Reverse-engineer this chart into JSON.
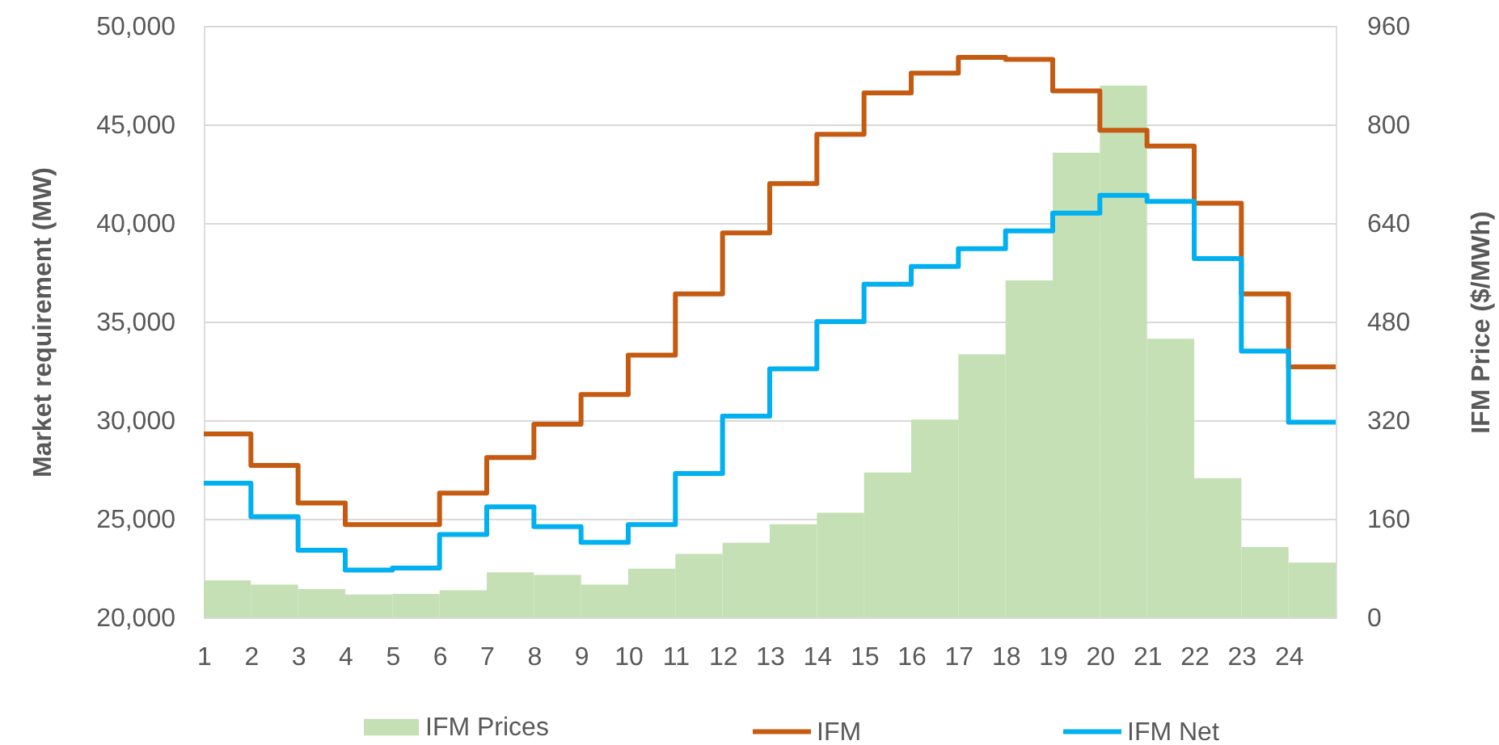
{
  "chart_data": {
    "type": "line",
    "x": [
      1,
      2,
      2,
      3,
      3,
      4,
      4,
      5,
      5,
      6,
      6,
      7,
      7,
      8,
      8,
      9,
      9,
      10,
      10,
      11,
      11,
      12,
      12,
      13,
      13,
      14,
      14,
      15,
      15,
      16,
      16,
      17,
      17,
      18,
      18,
      19,
      19,
      20,
      20,
      21,
      21,
      22,
      22,
      23,
      23,
      24,
      24,
      25
    ],
    "xlim": [
      1,
      25
    ],
    "xticks": [
      1,
      2,
      3,
      4,
      5,
      6,
      7,
      8,
      9,
      10,
      11,
      12,
      13,
      14,
      15,
      16,
      17,
      18,
      19,
      20,
      21,
      22,
      23,
      24
    ],
    "ylim": [
      20000,
      50000
    ],
    "yticks": [
      {
        "value": 20000,
        "label": "20,000"
      },
      {
        "value": 25000,
        "label": "25,000"
      },
      {
        "value": 30000,
        "label": "30,000"
      },
      {
        "value": 35000,
        "label": "35,000"
      },
      {
        "value": 40000,
        "label": "40,000"
      },
      {
        "value": 45000,
        "label": "45,000"
      },
      {
        "value": 50000,
        "label": "50,000"
      }
    ],
    "y2lim": [
      0,
      960
    ],
    "y2ticks": [
      0,
      160,
      320,
      480,
      640,
      800,
      960
    ],
    "ylabel": "Market requirement (MW)",
    "y2label": "IFM Price ($/MWh)",
    "series": [
      {
        "name": "IFM Prices",
        "type": "histogram",
        "axis": "y2",
        "color": "#c5e0b4",
        "bins": [
          1,
          2,
          3,
          4,
          5,
          6,
          7,
          8,
          9,
          10,
          11,
          12,
          13,
          14,
          15,
          16,
          17,
          18,
          19,
          20,
          21,
          22,
          23,
          24,
          25
        ],
        "values": [
          60,
          53,
          46,
          37,
          38,
          44,
          73,
          69,
          53,
          79,
          103,
          121,
          151,
          170,
          235,
          321,
          427,
          547,
          754,
          863,
          452,
          226,
          114,
          89
        ]
      },
      {
        "name": "IFM",
        "color": "#c55a11",
        "values": [
          29300,
          29300,
          27700,
          27700,
          25800,
          25800,
          24700,
          24700,
          24700,
          24700,
          26300,
          26300,
          28100,
          28100,
          29800,
          29800,
          31300,
          31300,
          33300,
          33300,
          36400,
          36400,
          39500,
          39500,
          42000,
          42000,
          44500,
          44500,
          46600,
          46600,
          47600,
          47600,
          48400,
          48400,
          48300,
          48300,
          46700,
          46700,
          44700,
          44700,
          43900,
          43900,
          41000,
          41000,
          36400,
          36400,
          32700,
          32700
        ]
      },
      {
        "name": "IFM Net",
        "color": "#00b0f0",
        "values": [
          26800,
          26800,
          25100,
          25100,
          23400,
          23400,
          22400,
          22400,
          22500,
          22500,
          24200,
          24200,
          25600,
          25600,
          24600,
          24600,
          23800,
          23800,
          24700,
          24700,
          27300,
          27300,
          30200,
          30200,
          32600,
          32600,
          35000,
          35000,
          36900,
          36900,
          37800,
          37800,
          38700,
          38700,
          39600,
          39600,
          40500,
          40500,
          41400,
          41400,
          41100,
          41100,
          38200,
          38200,
          33500,
          33500,
          29900,
          29900
        ]
      }
    ],
    "grid": "y",
    "legend": "bottom"
  }
}
